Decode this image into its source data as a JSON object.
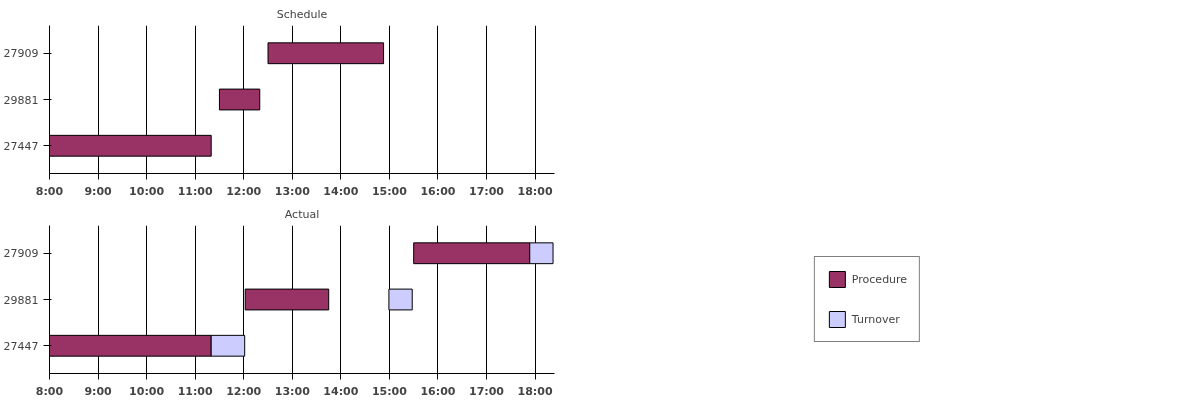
{
  "chart_data": [
    {
      "type": "bar",
      "orientation": "horizontal",
      "title": "Schedule",
      "categories": [
        "27909",
        "29881",
        "27447"
      ],
      "xlim": [
        8,
        18.4
      ],
      "xticks": [
        {
          "value": 8,
          "label": "8:00"
        },
        {
          "value": 9,
          "label": "9:00"
        },
        {
          "value": 10,
          "label": "10:00"
        },
        {
          "value": 11,
          "label": "11:00"
        },
        {
          "value": 12,
          "label": "12:00"
        },
        {
          "value": 13,
          "label": "13:00"
        },
        {
          "value": 14,
          "label": "14:00"
        },
        {
          "value": 15,
          "label": "15:00"
        },
        {
          "value": 16,
          "label": "16:00"
        },
        {
          "value": 17,
          "label": "17:00"
        },
        {
          "value": 18,
          "label": "18:00"
        }
      ],
      "grid": "x",
      "series": [
        {
          "color": "#993366",
          "base": [
            12.5,
            11.5,
            8.0
          ],
          "values": [
            2.38,
            0.83,
            3.33
          ]
        }
      ]
    },
    {
      "type": "bar",
      "orientation": "horizontal",
      "title": "Actual",
      "categories": [
        "27909",
        "29881",
        "27447"
      ],
      "xlim": [
        8,
        18.4
      ],
      "xticks": [
        {
          "value": 8,
          "label": "8:00"
        },
        {
          "value": 9,
          "label": "9:00"
        },
        {
          "value": 10,
          "label": "10:00"
        },
        {
          "value": 11,
          "label": "11:00"
        },
        {
          "value": 12,
          "label": "12:00"
        },
        {
          "value": 13,
          "label": "13:00"
        },
        {
          "value": 14,
          "label": "14:00"
        },
        {
          "value": 15,
          "label": "15:00"
        },
        {
          "value": 16,
          "label": "16:00"
        },
        {
          "value": 17,
          "label": "17:00"
        },
        {
          "value": 18,
          "label": "18:00"
        }
      ],
      "grid": "x",
      "legend": "right",
      "series": [
        {
          "name": "Procedure",
          "color": "#993366",
          "base": [
            15.5,
            12.03,
            8.0
          ],
          "values": [
            2.39,
            1.72,
            3.33
          ]
        },
        {
          "name": "Turnover",
          "color": "#ccccff",
          "base": [
            17.89,
            14.99,
            11.33
          ],
          "values": [
            0.48,
            0.48,
            0.69
          ]
        }
      ]
    }
  ]
}
